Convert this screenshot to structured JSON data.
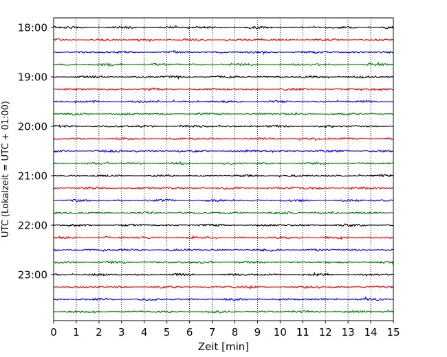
{
  "chart_data": {
    "type": "line",
    "title": "",
    "xlabel": "Zeit  [min]",
    "ylabel": "UTC (Lokalzeit = UTC + 01:00)",
    "xlim": [
      0,
      15
    ],
    "x_ticks": [
      "0",
      "1",
      "2",
      "3",
      "4",
      "5",
      "6",
      "7",
      "8",
      "9",
      "10",
      "11",
      "12",
      "13",
      "14",
      "15"
    ],
    "y_ticks": [
      {
        "label": "18:00",
        "row": 0
      },
      {
        "label": "19:00",
        "row": 4
      },
      {
        "label": "20:00",
        "row": 8
      },
      {
        "label": "21:00",
        "row": 12
      },
      {
        "label": "22:00",
        "row": 16
      },
      {
        "label": "23:00",
        "row": 20
      }
    ],
    "row_count": 24,
    "rows_start": "18:00",
    "minutes_per_row": 15,
    "trace_colors": [
      "#000000",
      "#ff0000",
      "#0000ff",
      "#008000"
    ],
    "grid": {
      "vertical_dotted": true
    }
  }
}
